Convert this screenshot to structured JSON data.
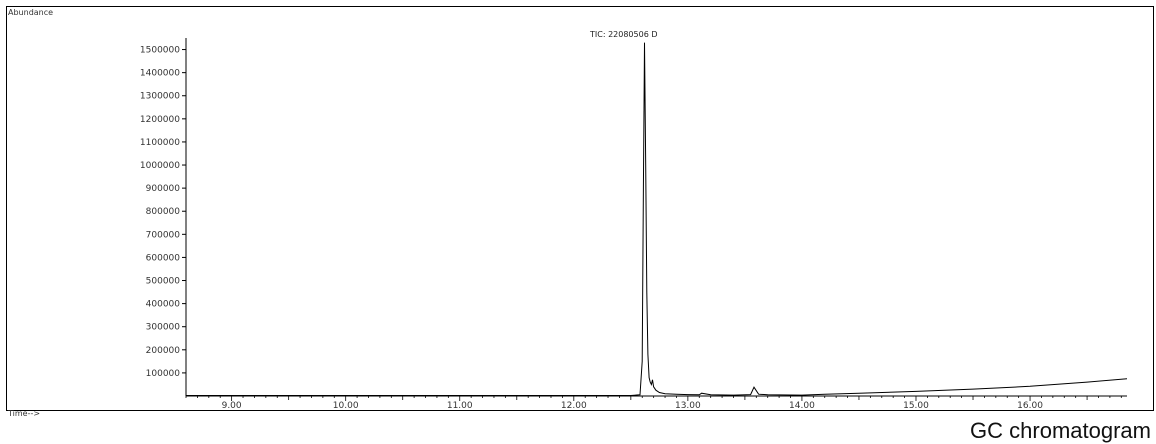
{
  "chart_data": {
    "type": "line",
    "title": "TIC: 22080506 D",
    "ylabel": "Abundance",
    "xlabel": "Time-->",
    "xlim": [
      8.6,
      16.85
    ],
    "ylim": [
      0,
      1550000
    ],
    "x_ticks": [
      "9.00",
      "10.00",
      "11.00",
      "12.00",
      "13.00",
      "14.00",
      "15.00",
      "16.00"
    ],
    "x_tick_values": [
      9,
      10,
      11,
      12,
      13,
      14,
      15,
      16
    ],
    "y_ticks": [
      "100000",
      "200000",
      "300000",
      "400000",
      "500000",
      "600000",
      "700000",
      "800000",
      "900000",
      "1000000",
      "1100000",
      "1200000",
      "1300000",
      "1400000",
      "1500000"
    ],
    "y_tick_values": [
      100000,
      200000,
      300000,
      400000,
      500000,
      600000,
      700000,
      800000,
      900000,
      1000000,
      1100000,
      1200000,
      1300000,
      1400000,
      1500000
    ],
    "grid": false,
    "series": [
      {
        "name": "TIC: 22080506 D",
        "color": "#000000",
        "x": [
          8.6,
          9.0,
          10.0,
          11.0,
          12.0,
          12.5,
          12.58,
          12.6,
          12.61,
          12.62,
          12.63,
          12.64,
          12.65,
          12.66,
          12.67,
          12.68,
          12.69,
          12.7,
          12.72,
          12.75,
          12.8,
          12.9,
          13.0,
          13.1,
          13.12,
          13.2,
          13.4,
          13.55,
          13.58,
          13.62,
          13.7,
          14.0,
          14.2,
          14.5,
          15.0,
          15.5,
          16.0,
          16.5,
          16.85
        ],
        "y": [
          2000,
          2000,
          2000,
          2000,
          2000,
          2000,
          5000,
          150000,
          900000,
          1530000,
          1000000,
          450000,
          180000,
          80000,
          60000,
          50000,
          70000,
          40000,
          25000,
          15000,
          10000,
          8000,
          6000,
          5000,
          12000,
          5000,
          4000,
          6000,
          38000,
          8000,
          5000,
          4000,
          8000,
          12000,
          20000,
          30000,
          42000,
          60000,
          75000
        ]
      }
    ]
  },
  "footer": {
    "caption": "GC chromatogram"
  }
}
